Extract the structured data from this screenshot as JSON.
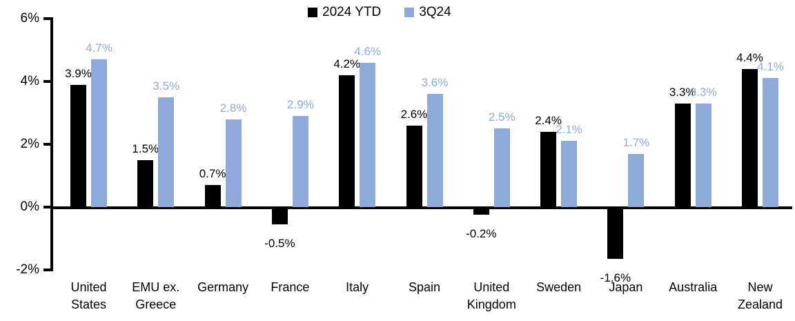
{
  "chart_data": {
    "type": "bar",
    "title": "",
    "xlabel": "",
    "ylabel": "",
    "ylim": [
      -2,
      6
    ],
    "grid": false,
    "legend_position": "top-center",
    "y_ticks": [
      {
        "value": 6,
        "label": "6%"
      },
      {
        "value": 4,
        "label": "4%"
      },
      {
        "value": 2,
        "label": "2%"
      },
      {
        "value": 0,
        "label": "0%"
      },
      {
        "value": -2,
        "label": "-2%"
      }
    ],
    "categories": [
      "United States",
      "EMU ex. Greece",
      "Germany",
      "France",
      "Italy",
      "Spain",
      "United Kingdom",
      "Sweden",
      "Japan",
      "Australia",
      "New Zealand"
    ],
    "category_lines": [
      "United\nStates",
      "EMU ex.\nGreece",
      "Germany",
      "France",
      "Italy",
      "Spain",
      "United\nKingdom",
      "Sweden",
      "Japan",
      "Australia",
      "New\nZealand"
    ],
    "series": [
      {
        "name": "2024 YTD",
        "color": "#000000",
        "values": [
          3.9,
          1.5,
          0.7,
          -0.5,
          4.2,
          2.6,
          -0.2,
          2.4,
          -1.6,
          3.3,
          4.4
        ],
        "labels": [
          "3.9%",
          "1.5%",
          "0.7%",
          "-0.5%",
          "4.2%",
          "2.6%",
          "-0.2%",
          "2.4%",
          "-1.6%",
          "3.3%",
          "4.4%"
        ]
      },
      {
        "name": "3Q24",
        "color": "#8EAADB",
        "values": [
          4.7,
          3.5,
          2.8,
          2.9,
          4.6,
          3.6,
          2.5,
          2.1,
          1.7,
          3.3,
          4.1
        ],
        "labels": [
          "4.7%",
          "3.5%",
          "2.8%",
          "2.9%",
          "4.6%",
          "3.6%",
          "2.5%",
          "2.1%",
          "1.7%",
          "3.3%",
          "4.1%"
        ]
      }
    ]
  }
}
